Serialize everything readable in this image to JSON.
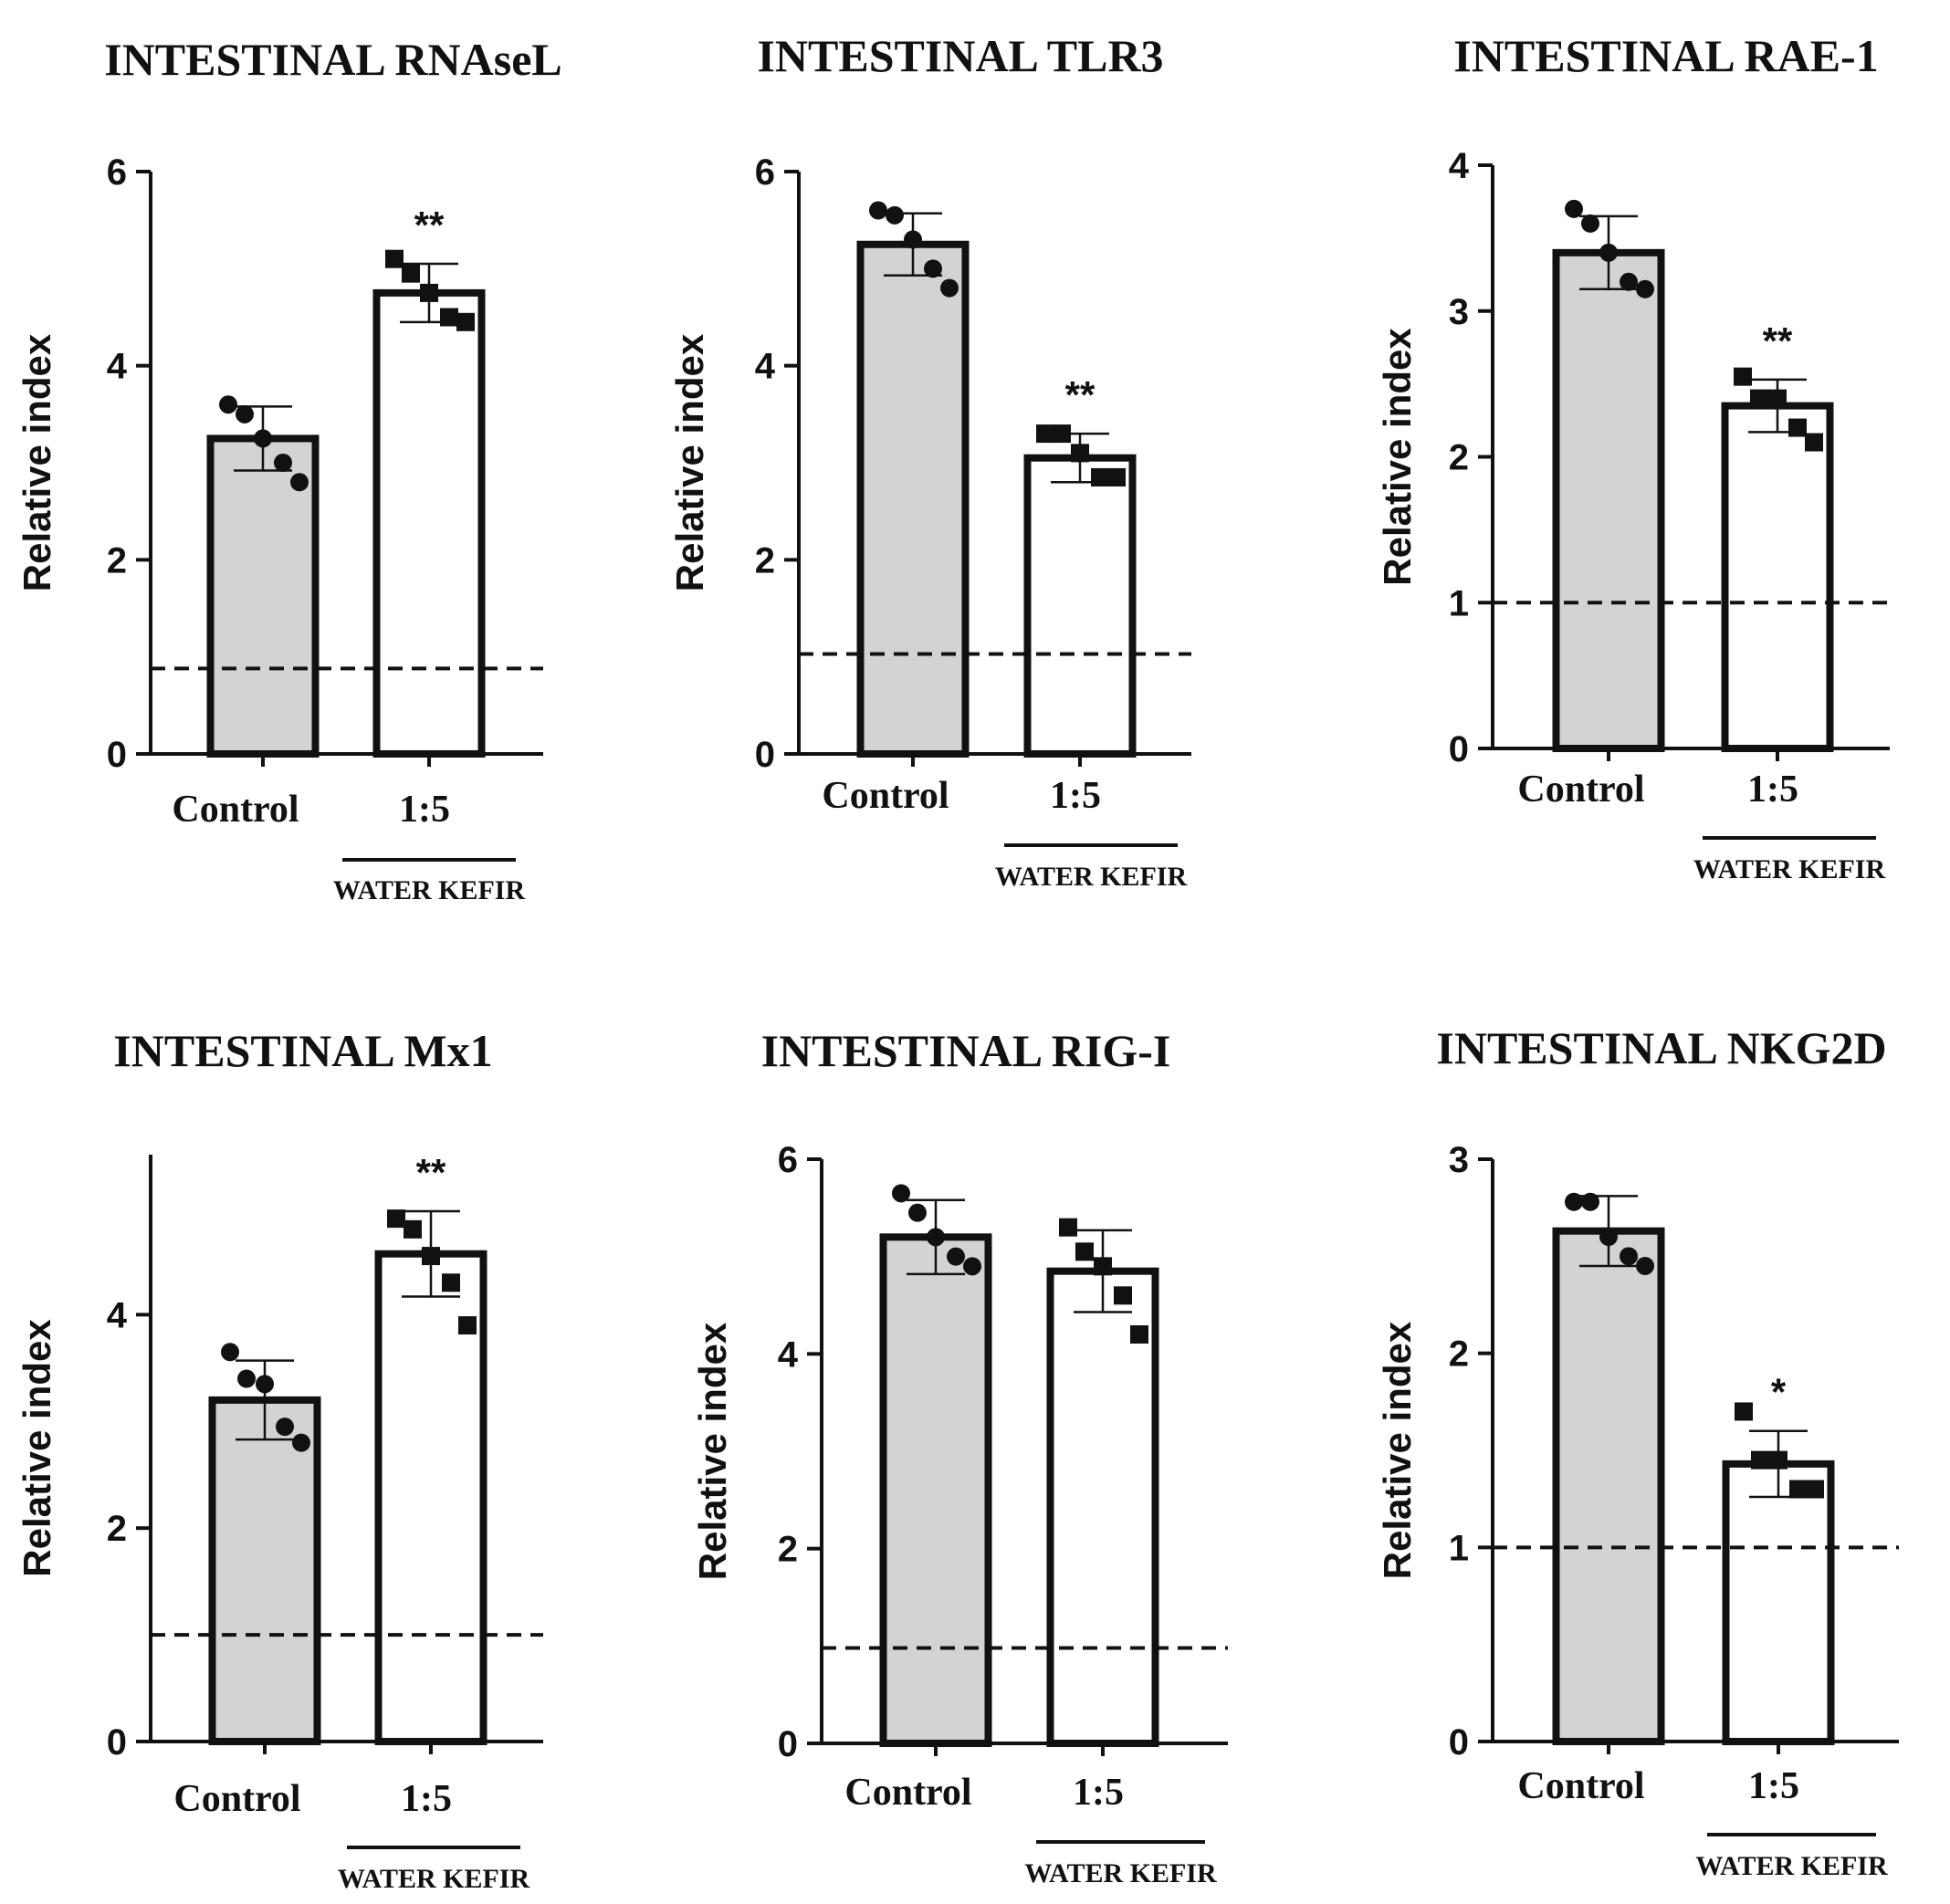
{
  "figure": {
    "description_title": "Intestinal gene expression panels"
  },
  "chart_data": [
    {
      "type": "bar",
      "title": "INTESTINAL RNAseL",
      "ylabel": "Relative index",
      "xlabel": "",
      "ylim": [
        0,
        6
      ],
      "yticks": [
        0,
        2,
        4,
        6
      ],
      "categories": [
        "Control",
        "1:5"
      ],
      "group_label": "WATER KEFIR",
      "values": [
        3.25,
        4.75
      ],
      "errors": [
        0.33,
        0.3
      ],
      "points": [
        [
          3.6,
          3.5,
          3.25,
          3.0,
          2.8
        ],
        [
          5.1,
          4.95,
          4.75,
          4.5,
          4.45
        ]
      ],
      "markers": [
        "circle",
        "square"
      ],
      "significance": [
        "",
        "**"
      ],
      "reference_line": 0.88,
      "fills": [
        "#d3d3d3",
        "#ffffff"
      ]
    },
    {
      "type": "bar",
      "title": "INTESTINAL TLR3",
      "ylabel": "Relative index",
      "xlabel": "",
      "ylim": [
        0,
        6
      ],
      "yticks": [
        0,
        2,
        4,
        6
      ],
      "categories": [
        "Control",
        "1:5"
      ],
      "group_label": "WATER KEFIR",
      "values": [
        5.25,
        3.05
      ],
      "errors": [
        0.32,
        0.25
      ],
      "points": [
        [
          5.6,
          5.55,
          5.3,
          5.0,
          4.8
        ],
        [
          3.3,
          3.3,
          3.1,
          2.85,
          2.85
        ]
      ],
      "markers": [
        "circle",
        "square"
      ],
      "significance": [
        "",
        "**"
      ],
      "reference_line": 1.03,
      "fills": [
        "#d3d3d3",
        "#ffffff"
      ]
    },
    {
      "type": "bar",
      "title": "INTESTINAL RAE-1",
      "ylabel": "Relative index",
      "xlabel": "",
      "ylim": [
        0,
        4
      ],
      "yticks": [
        0,
        1,
        2,
        3,
        4
      ],
      "categories": [
        "Control",
        "1:5"
      ],
      "group_label": "WATER KEFIR",
      "values": [
        3.4,
        2.35
      ],
      "errors": [
        0.25,
        0.18
      ],
      "points": [
        [
          3.7,
          3.6,
          3.4,
          3.2,
          3.15
        ],
        [
          2.55,
          2.4,
          2.4,
          2.2,
          2.1
        ]
      ],
      "markers": [
        "circle",
        "square"
      ],
      "significance": [
        "",
        "**"
      ],
      "reference_line": 1.0,
      "fills": [
        "#d3d3d3",
        "#ffffff"
      ]
    },
    {
      "type": "bar",
      "title": "INTESTINAL Mx1",
      "ylabel": "Relative index",
      "xlabel": "",
      "ylim": [
        0,
        5.5
      ],
      "yticks": [
        0,
        2,
        4
      ],
      "categories": [
        "Control",
        "1:5"
      ],
      "group_label": "WATER KEFIR",
      "values": [
        3.2,
        4.57
      ],
      "errors": [
        0.37,
        0.4
      ],
      "points": [
        [
          3.65,
          3.4,
          3.35,
          2.95,
          2.8
        ],
        [
          4.9,
          4.8,
          4.55,
          4.3,
          3.9
        ]
      ],
      "markers": [
        "circle",
        "square"
      ],
      "significance": [
        "",
        "**"
      ],
      "reference_line": 1.0,
      "fills": [
        "#d3d3d3",
        "#ffffff"
      ]
    },
    {
      "type": "bar",
      "title": "INTESTINAL RIG-I",
      "ylabel": "Relative index",
      "xlabel": "",
      "ylim": [
        0,
        6
      ],
      "yticks": [
        0,
        2,
        4,
        6
      ],
      "categories": [
        "Control",
        "1:5"
      ],
      "group_label": "WATER KEFIR",
      "values": [
        5.2,
        4.85
      ],
      "errors": [
        0.38,
        0.42
      ],
      "points": [
        [
          5.65,
          5.45,
          5.2,
          5.0,
          4.9
        ],
        [
          5.3,
          5.05,
          4.9,
          4.6,
          4.2
        ]
      ],
      "markers": [
        "circle",
        "square"
      ],
      "significance": [
        "",
        ""
      ],
      "reference_line": 0.98,
      "fills": [
        "#d3d3d3",
        "#ffffff"
      ]
    },
    {
      "type": "bar",
      "title": "INTESTINAL NKG2D",
      "ylabel": "Relative index",
      "xlabel": "",
      "ylim": [
        0,
        3
      ],
      "yticks": [
        0,
        1,
        2,
        3
      ],
      "categories": [
        "Control",
        "1:5"
      ],
      "group_label": "WATER KEFIR",
      "values": [
        2.63,
        1.43
      ],
      "errors": [
        0.18,
        0.17
      ],
      "points": [
        [
          2.78,
          2.78,
          2.6,
          2.5,
          2.45
        ],
        [
          1.7,
          1.45,
          1.45,
          1.3,
          1.3
        ]
      ],
      "markers": [
        "circle",
        "square"
      ],
      "significance": [
        "",
        "*"
      ],
      "reference_line": 1.0,
      "fills": [
        "#d3d3d3",
        "#ffffff"
      ]
    }
  ]
}
